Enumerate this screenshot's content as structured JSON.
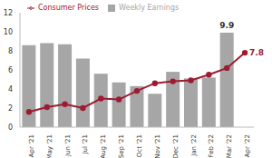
{
  "chart_data": {
    "type": "bar",
    "categories": [
      "Apr '21",
      "May '21",
      "Jun '21",
      "Jul '21",
      "Aug '21",
      "Sep '21",
      "Oct '21",
      "Nov '21",
      "Dec '21",
      "Jan '22",
      "Feb '22",
      "Mar '22",
      "Apr '22"
    ],
    "series": [
      {
        "name": "Weekly Earnings",
        "type": "bar",
        "color": "#a6a6a6",
        "values": [
          8.6,
          8.8,
          8.7,
          7.2,
          5.6,
          4.7,
          4.3,
          3.5,
          5.8,
          5.1,
          5.2,
          9.9,
          null
        ],
        "value_labels": [
          null,
          null,
          null,
          null,
          null,
          null,
          null,
          null,
          null,
          null,
          null,
          "9.9",
          null
        ]
      },
      {
        "name": "Consumer Prices",
        "type": "line",
        "color": "#9e1b32",
        "marker": "circle",
        "values": [
          1.6,
          2.1,
          2.4,
          2.0,
          3.0,
          2.9,
          3.8,
          4.6,
          4.8,
          4.9,
          5.5,
          6.2,
          7.8
        ],
        "value_labels": [
          null,
          null,
          null,
          null,
          null,
          null,
          null,
          null,
          null,
          null,
          null,
          null,
          "7.8"
        ]
      }
    ],
    "ylim": [
      0,
      12
    ],
    "yticks": [
      0,
      2,
      4,
      6,
      8,
      10,
      12
    ],
    "grid": false,
    "legend": "top"
  }
}
